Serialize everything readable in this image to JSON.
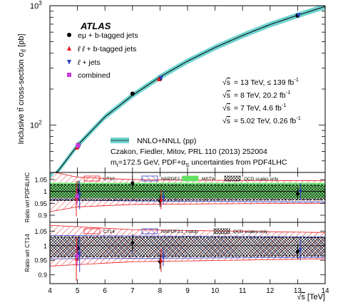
{
  "chart_data": [
    {
      "type": "line",
      "panel": "main",
      "yscale": "log",
      "xlim": [
        4,
        14
      ],
      "ylim": [
        40,
        1000
      ],
      "ylabel_parts": [
        "Inclusive t",
        "t",
        " cross-section σ",
        "t",
        "t",
        " [pb]"
      ],
      "ytick_labels": [
        {
          "v": 100,
          "base": "10",
          "exp": "2"
        },
        {
          "v": 1000,
          "base": "10",
          "exp": "3"
        }
      ],
      "brand": "ATLAS",
      "series": [
        {
          "name": "eμ + b-tagged jets",
          "marker": "circle",
          "color": "#000000",
          "points": [
            [
              5.02,
              68.2
            ],
            [
              7,
              182.9
            ],
            [
              8,
              242.9
            ],
            [
              13,
              826.4
            ]
          ]
        },
        {
          "name_parts": [
            "ℓ ℓ",
            " + b-tagged jets"
          ],
          "marker": "triangle-up",
          "color": "#e8181e",
          "points": [
            [
              5.02,
              65
            ],
            [
              8,
              243
            ]
          ]
        },
        {
          "name_parts": [
            "ℓ",
            " + jets"
          ],
          "marker": "triangle-down",
          "color": "#2b3ec2",
          "points": [
            [
              5.02,
              66
            ],
            [
              8,
              248
            ],
            [
              13,
              830
            ]
          ]
        },
        {
          "name": "combined",
          "marker": "square",
          "color": "#c93bd8",
          "points": [
            [
              5.02,
              67.5
            ]
          ]
        }
      ],
      "theory": {
        "label": "NNLO+NNLL (pp)",
        "ref": "Czakon, Fiedler, Mitov, PRL 110 (2013) 252004",
        "mt_text": "m",
        "mt_sub": "t",
        "mt_rest": "=172.5 GeV, PDF+α",
        "alpha_sub": "S",
        "mt_end": " uncertainties from PDF4LHC",
        "band_color": "#6fd3cf",
        "points": [
          [
            4,
            33.4
          ],
          [
            5,
            67.3
          ],
          [
            6,
            117
          ],
          [
            7,
            177.3
          ],
          [
            8,
            252.9
          ],
          [
            9,
            343
          ],
          [
            10,
            446
          ],
          [
            11,
            563
          ],
          [
            12,
            695
          ],
          [
            13,
            832
          ],
          [
            14,
            985
          ]
        ],
        "rel_unc": 0.055
      },
      "datasets": [
        {
          "energy": "= 13 TeV, ≤ 139 fb",
          "exp": "-1"
        },
        {
          "energy": "= 8 TeV, 20.2 fb",
          "exp": "-1"
        },
        {
          "energy": "= 7 TeV, 4.6 fb",
          "exp": "-1"
        },
        {
          "energy": "= 5.02 TeV, 0.26 fb",
          "exp": "-1"
        }
      ],
      "sqrt_s": "s"
    },
    {
      "type": "line",
      "panel": "ratio-pdf4lhc",
      "ylabel": "Ratio wrt PDF4LHC",
      "ylim": [
        0.87,
        1.08
      ],
      "ytick_labels": [
        "0.9",
        "0.95",
        "1",
        "1.05"
      ],
      "ytick_values": [
        0.9,
        0.95,
        1.0,
        1.05
      ],
      "legend": [
        "CT10",
        "NNPDF2.3",
        "MSTW",
        "QCD scales only"
      ],
      "bands": [
        {
          "name": "CT10",
          "color": "#e8181e",
          "lo": [
            [
              4,
              0.915
            ],
            [
              5,
              0.935
            ],
            [
              7,
              0.945
            ],
            [
              10,
              0.948
            ],
            [
              14,
              0.95
            ]
          ],
          "hi": [
            [
              4,
              1.085
            ],
            [
              5,
              1.06
            ],
            [
              7,
              1.05
            ],
            [
              10,
              1.047
            ],
            [
              14,
              1.045
            ]
          ]
        },
        {
          "name": "NNPDF2.3",
          "color": "#2b3ec2",
          "lo": [
            [
              4,
              0.965
            ],
            [
              7,
              0.96
            ],
            [
              14,
              0.955
            ]
          ],
          "hi": [
            [
              4,
              1.03
            ],
            [
              7,
              1.03
            ],
            [
              14,
              1.03
            ]
          ]
        },
        {
          "name": "MSTW",
          "color": "#63e063",
          "lo": [
            [
              4,
              0.975
            ],
            [
              14,
              0.972
            ]
          ],
          "hi": [
            [
              4,
              1.035
            ],
            [
              14,
              1.035
            ]
          ]
        },
        {
          "name": "QCD scales only",
          "color": "#000000",
          "lo": [
            [
              4,
              0.962
            ],
            [
              14,
              0.965
            ]
          ],
          "hi": [
            [
              4,
              1.028
            ],
            [
              14,
              1.026
            ]
          ]
        }
      ],
      "points": [
        {
          "x": 5.02,
          "y": 1.005,
          "err": 0.04,
          "color": "#000000",
          "marker": "circle"
        },
        {
          "x": 7,
          "y": 1.035,
          "err": 0.03,
          "color": "#000000",
          "marker": "circle"
        },
        {
          "x": 8,
          "y": 0.96,
          "err": 0.025,
          "color": "#000000",
          "marker": "circle"
        },
        {
          "x": 13,
          "y": 0.99,
          "err": 0.025,
          "color": "#000000",
          "marker": "circle"
        },
        {
          "x": 4.96,
          "y": 0.97,
          "err": 0.075,
          "color": "#e8181e",
          "marker": "triangle-up"
        },
        {
          "x": 8.04,
          "y": 0.965,
          "err": 0.04,
          "color": "#e8181e",
          "marker": "triangle-up"
        },
        {
          "x": 5.08,
          "y": 0.985,
          "err": 0.06,
          "color": "#2b3ec2",
          "marker": "triangle-down"
        },
        {
          "x": 8.12,
          "y": 0.975,
          "err": 0.03,
          "color": "#2b3ec2",
          "marker": "triangle-down"
        },
        {
          "x": 13.1,
          "y": 1.0,
          "err": 0.035,
          "color": "#2b3ec2",
          "marker": "triangle-down"
        },
        {
          "x": 4.99,
          "y": 0.98,
          "err": 0.035,
          "color": "#c93bd8",
          "marker": "square"
        }
      ]
    },
    {
      "type": "line",
      "panel": "ratio-ct14",
      "ylabel": "Ratio wrt CT14",
      "xlabel_unit": "[TeV]",
      "sqrt_s": "s",
      "ylim": [
        0.87,
        1.08
      ],
      "ytick_labels": [
        "0.9",
        "0.95",
        "1",
        "1.05"
      ],
      "ytick_values": [
        0.9,
        0.95,
        1.0,
        1.05
      ],
      "xtick_labels": [
        "4",
        "5",
        "6",
        "7",
        "8",
        "9",
        "10",
        "11",
        "12",
        "13",
        "14"
      ],
      "xtick_values": [
        4,
        5,
        6,
        7,
        8,
        9,
        10,
        11,
        12,
        13,
        14
      ],
      "legend": [
        "CT14",
        "NNPDF3.1_notop",
        "QCD scales only"
      ],
      "bands": [
        {
          "name": "CT14",
          "color": "#e8181e",
          "lo": [
            [
              4,
              0.93
            ],
            [
              7,
              0.945
            ],
            [
              14,
              0.955
            ]
          ],
          "hi": [
            [
              4,
              1.07
            ],
            [
              7,
              1.055
            ],
            [
              14,
              1.045
            ]
          ]
        },
        {
          "name": "NNPDF3.1_notop",
          "color": "#2b3ec2",
          "lo": [
            [
              4,
              0.955
            ],
            [
              14,
              0.96
            ]
          ],
          "hi": [
            [
              4,
              1.035
            ],
            [
              14,
              1.03
            ]
          ]
        },
        {
          "name": "QCD scales only",
          "color": "#000000",
          "lo": [
            [
              4,
              0.962
            ],
            [
              14,
              0.965
            ]
          ],
          "hi": [
            [
              4,
              1.03
            ],
            [
              14,
              1.028
            ]
          ]
        }
      ],
      "points": [
        {
          "x": 5.02,
          "y": 0.99,
          "err": 0.04,
          "color": "#000000",
          "marker": "circle"
        },
        {
          "x": 7,
          "y": 1.01,
          "err": 0.03,
          "color": "#000000",
          "marker": "circle"
        },
        {
          "x": 8,
          "y": 0.945,
          "err": 0.025,
          "color": "#000000",
          "marker": "circle"
        },
        {
          "x": 13,
          "y": 0.98,
          "err": 0.025,
          "color": "#000000",
          "marker": "circle"
        },
        {
          "x": 4.96,
          "y": 0.955,
          "err": 0.075,
          "color": "#e8181e",
          "marker": "triangle-up"
        },
        {
          "x": 8.04,
          "y": 0.95,
          "err": 0.04,
          "color": "#e8181e",
          "marker": "triangle-up"
        },
        {
          "x": 5.08,
          "y": 0.97,
          "err": 0.06,
          "color": "#2b3ec2",
          "marker": "triangle-down"
        },
        {
          "x": 8.12,
          "y": 0.96,
          "err": 0.03,
          "color": "#2b3ec2",
          "marker": "triangle-down"
        },
        {
          "x": 13.1,
          "y": 0.985,
          "err": 0.035,
          "color": "#2b3ec2",
          "marker": "triangle-down"
        },
        {
          "x": 4.99,
          "y": 0.965,
          "err": 0.035,
          "color": "#c93bd8",
          "marker": "square"
        }
      ]
    }
  ]
}
